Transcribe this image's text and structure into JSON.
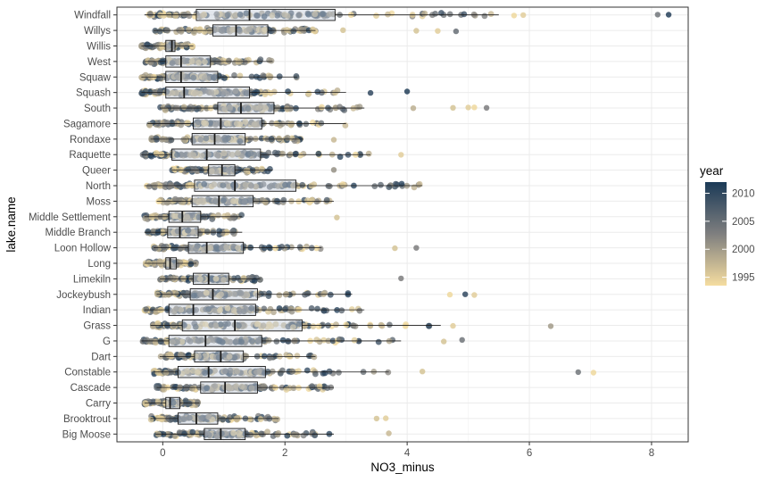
{
  "chart_data": {
    "type": "scatter",
    "subtype": "jittered points with boxplots (horizontal), color by continuous year",
    "xlabel": "NO3_minus",
    "ylabel": "lake.name",
    "xlim": [
      -0.75,
      8.6
    ],
    "x_ticks": [
      0,
      2,
      4,
      6,
      8
    ],
    "grid": true,
    "legend": {
      "title": "year",
      "placement": "right",
      "type": "colorbar",
      "range": [
        1993.5,
        2012
      ],
      "breaks": [
        1995,
        2000,
        2005,
        2010
      ],
      "low_color": "#F5DDA0",
      "mid_color": "#7F7F7F",
      "high_color": "#1B3A57"
    },
    "categories": [
      "Big Moose",
      "Brooktrout",
      "Carry",
      "Cascade",
      "Constable",
      "Dart",
      "G",
      "Grass",
      "Indian",
      "Jockeybush",
      "Limekiln",
      "Long",
      "Loon Hollow",
      "Middle Branch",
      "Middle Settlement",
      "Moss",
      "North",
      "Queer",
      "Raquette",
      "Rondaxe",
      "Sagamore",
      "South",
      "Squash",
      "Squaw",
      "West",
      "Willis",
      "Willys",
      "Windfall"
    ],
    "boxes": [
      {
        "lake": "Big Moose",
        "q1": 0.68,
        "median": 0.95,
        "q3": 1.35,
        "whisker_low": -0.12,
        "whisker_high": 2.8
      },
      {
        "lake": "Brooktrout",
        "q1": 0.25,
        "median": 0.55,
        "q3": 0.9,
        "whisker_low": -0.2,
        "whisker_high": 1.9
      },
      {
        "lake": "Carry",
        "q1": 0.05,
        "median": 0.12,
        "q3": 0.28,
        "whisker_low": -0.3,
        "whisker_high": 0.6
      },
      {
        "lake": "Cascade",
        "q1": 0.62,
        "median": 1.02,
        "q3": 1.55,
        "whisker_low": -0.1,
        "whisker_high": 2.8
      },
      {
        "lake": "Constable",
        "q1": 0.25,
        "median": 0.75,
        "q3": 1.68,
        "whisker_low": -0.15,
        "whisker_high": 3.7
      },
      {
        "lake": "Dart",
        "q1": 0.52,
        "median": 0.95,
        "q3": 1.32,
        "whisker_low": -0.05,
        "whisker_high": 2.5
      },
      {
        "lake": "G",
        "q1": 0.1,
        "median": 0.7,
        "q3": 1.62,
        "whisker_low": -0.35,
        "whisker_high": 3.9
      },
      {
        "lake": "Grass",
        "q1": 0.32,
        "median": 1.18,
        "q3": 2.28,
        "whisker_low": -0.2,
        "whisker_high": 4.55
      },
      {
        "lake": "Indian",
        "q1": 0.1,
        "median": 0.5,
        "q3": 1.52,
        "whisker_low": -0.3,
        "whisker_high": 3.3
      },
      {
        "lake": "Jockeybush",
        "q1": 0.45,
        "median": 0.82,
        "q3": 1.55,
        "whisker_low": -0.1,
        "whisker_high": 3.1
      },
      {
        "lake": "Limekiln",
        "q1": 0.5,
        "median": 0.75,
        "q3": 1.08,
        "whisker_low": -0.05,
        "whisker_high": 1.6
      },
      {
        "lake": "Long",
        "q1": 0.05,
        "median": 0.12,
        "q3": 0.22,
        "whisker_low": -0.3,
        "whisker_high": 0.55
      },
      {
        "lake": "Loon Hollow",
        "q1": 0.42,
        "median": 0.72,
        "q3": 1.32,
        "whisker_low": -0.15,
        "whisker_high": 2.6
      },
      {
        "lake": "Middle Branch",
        "q1": 0.08,
        "median": 0.28,
        "q3": 0.58,
        "whisker_low": -0.3,
        "whisker_high": 1.3
      },
      {
        "lake": "Middle Settlement",
        "q1": 0.1,
        "median": 0.32,
        "q3": 0.62,
        "whisker_low": -0.3,
        "whisker_high": 1.3
      },
      {
        "lake": "Moss",
        "q1": 0.48,
        "median": 0.92,
        "q3": 1.48,
        "whisker_low": -0.1,
        "whisker_high": 2.8
      },
      {
        "lake": "North",
        "q1": 0.52,
        "median": 1.18,
        "q3": 2.18,
        "whisker_low": -0.3,
        "whisker_high": 4.25
      },
      {
        "lake": "Queer",
        "q1": 0.75,
        "median": 0.97,
        "q3": 1.18,
        "whisker_low": 0.15,
        "whisker_high": 1.8
      },
      {
        "lake": "Raquette",
        "q1": 0.15,
        "median": 0.72,
        "q3": 1.6,
        "whisker_low": -0.35,
        "whisker_high": 3.4
      },
      {
        "lake": "Rondaxe",
        "q1": 0.48,
        "median": 0.85,
        "q3": 1.35,
        "whisker_low": -0.2,
        "whisker_high": 2.3
      },
      {
        "lake": "Sagamore",
        "q1": 0.5,
        "median": 0.95,
        "q3": 1.62,
        "whisker_low": -0.25,
        "whisker_high": 3.0
      },
      {
        "lake": "South",
        "q1": 0.9,
        "median": 1.28,
        "q3": 1.82,
        "whisker_low": -0.05,
        "whisker_high": 3.3
      },
      {
        "lake": "Squash",
        "q1": 0.05,
        "median": 0.35,
        "q3": 1.42,
        "whisker_low": -0.35,
        "whisker_high": 3.0
      },
      {
        "lake": "Squaw",
        "q1": 0.05,
        "median": 0.3,
        "q3": 0.9,
        "whisker_low": -0.35,
        "whisker_high": 2.2
      },
      {
        "lake": "West",
        "q1": 0.05,
        "median": 0.3,
        "q3": 0.78,
        "whisker_low": -0.3,
        "whisker_high": 1.8
      },
      {
        "lake": "Willis",
        "q1": 0.05,
        "median": 0.15,
        "q3": 0.2,
        "whisker_low": -0.35,
        "whisker_high": 0.5
      },
      {
        "lake": "Willys",
        "q1": 0.82,
        "median": 1.2,
        "q3": 1.72,
        "whisker_low": -0.15,
        "whisker_high": 2.5
      },
      {
        "lake": "Windfall",
        "q1": 0.55,
        "median": 1.42,
        "q3": 2.82,
        "whisker_low": -0.3,
        "whisker_high": 5.5
      }
    ],
    "outliers": [
      {
        "lake": "Windfall",
        "x": 8.1,
        "year": 2004
      },
      {
        "lake": "Windfall",
        "x": 8.28,
        "year": 2011
      },
      {
        "lake": "Windfall",
        "x": 5.9,
        "year": 1995
      },
      {
        "lake": "Windfall",
        "x": 5.75,
        "year": 1994
      },
      {
        "lake": "Willys",
        "x": 2.95,
        "year": 1996
      },
      {
        "lake": "Willys",
        "x": 4.15,
        "year": 1996
      },
      {
        "lake": "Willys",
        "x": 4.5,
        "year": 1995
      },
      {
        "lake": "Willys",
        "x": 4.8,
        "year": 2005
      },
      {
        "lake": "South",
        "x": 4.1,
        "year": 1998
      },
      {
        "lake": "South",
        "x": 4.75,
        "year": 1996
      },
      {
        "lake": "South",
        "x": 5.0,
        "year": 1995
      },
      {
        "lake": "South",
        "x": 5.1,
        "year": 1994
      },
      {
        "lake": "South",
        "x": 5.3,
        "year": 2003
      },
      {
        "lake": "Squash",
        "x": 4.0,
        "year": 2011
      },
      {
        "lake": "Squash",
        "x": 3.4,
        "year": 2010
      },
      {
        "lake": "Raquette",
        "x": 3.9,
        "year": 1995
      },
      {
        "lake": "Jockeybush",
        "x": 4.95,
        "year": 2010
      },
      {
        "lake": "Jockeybush",
        "x": 5.1,
        "year": 1995
      },
      {
        "lake": "Jockeybush",
        "x": 4.7,
        "year": 1994
      },
      {
        "lake": "Grass",
        "x": 6.35,
        "year": 2000
      },
      {
        "lake": "Grass",
        "x": 4.75,
        "year": 1995
      },
      {
        "lake": "G",
        "x": 4.6,
        "year": 1996
      },
      {
        "lake": "G",
        "x": 4.9,
        "year": 2004
      },
      {
        "lake": "Constable",
        "x": 6.8,
        "year": 2004
      },
      {
        "lake": "Constable",
        "x": 7.05,
        "year": 1994
      },
      {
        "lake": "Constable",
        "x": 4.25,
        "year": 1996
      },
      {
        "lake": "Loon Hollow",
        "x": 3.8,
        "year": 1996
      },
      {
        "lake": "Loon Hollow",
        "x": 4.15,
        "year": 2003
      },
      {
        "lake": "Limekiln",
        "x": 3.9,
        "year": 2003
      },
      {
        "lake": "Brooktrout",
        "x": 3.5,
        "year": 1996
      },
      {
        "lake": "Brooktrout",
        "x": 3.65,
        "year": 1995
      },
      {
        "lake": "Big Moose",
        "x": 3.7,
        "year": 1997
      },
      {
        "lake": "Middle Settlement",
        "x": 2.85,
        "year": 1996
      },
      {
        "lake": "Queer",
        "x": 2.8,
        "year": 2001
      },
      {
        "lake": "Rondaxe",
        "x": 2.8,
        "year": 1997
      }
    ]
  }
}
